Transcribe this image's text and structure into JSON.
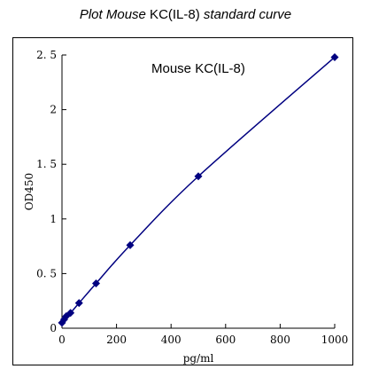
{
  "title": {
    "part1": "Plot Mouse",
    "part2": " KC(IL-8) ",
    "part3": "standard curve"
  },
  "chart_data": {
    "type": "scatter",
    "title": "Plot Mouse KC(IL-8) standard curve",
    "annotation": "Mouse KC(IL-8)",
    "xlabel": "pg/ml",
    "ylabel": "OD450",
    "xlim": [
      0,
      1000
    ],
    "ylim": [
      0,
      2.5
    ],
    "xticks": [
      0,
      200,
      400,
      600,
      800,
      1000
    ],
    "yticks": [
      0,
      0.5,
      1,
      1.5,
      2,
      2.5
    ],
    "ytick_labels": [
      "0",
      "0. 5",
      "1",
      "1. 5",
      "2",
      "2. 5"
    ],
    "grid": false,
    "legend": "none",
    "series": [
      {
        "x": [
          0,
          7.8,
          15.6,
          31.25,
          62.5,
          125,
          250,
          500,
          1000
        ],
        "y": [
          0.05,
          0.08,
          0.11,
          0.14,
          0.23,
          0.41,
          0.76,
          1.39,
          2.48
        ],
        "color": "#000080",
        "marker": "diamond",
        "line": "smooth"
      }
    ]
  }
}
